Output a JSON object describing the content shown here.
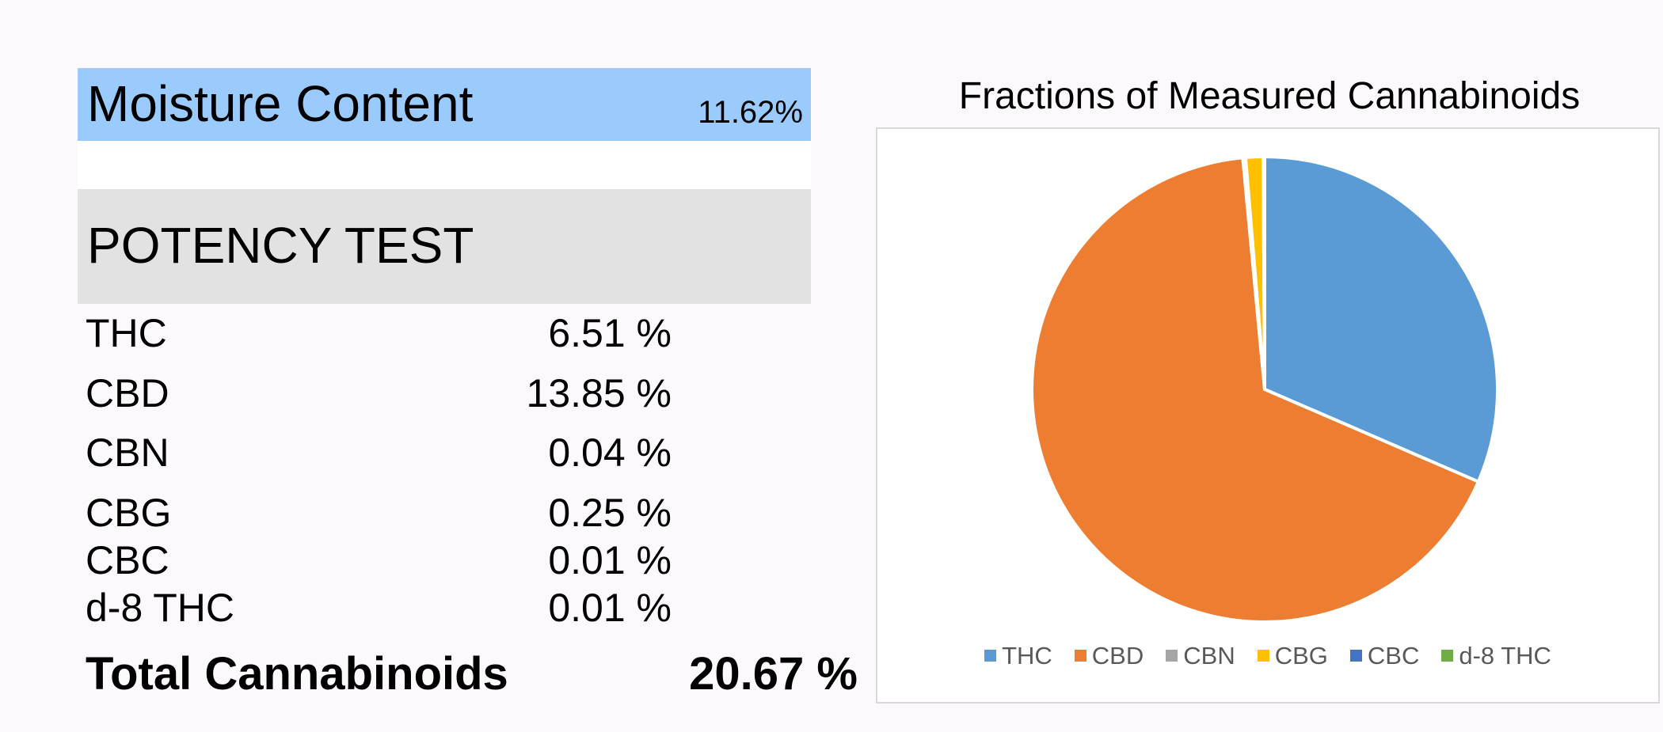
{
  "moisture": {
    "label": "Moisture Content",
    "value": "11.62%"
  },
  "potency": {
    "title": "POTENCY TEST",
    "rows": [
      {
        "name": "THC",
        "value": "6.51 %"
      },
      {
        "name": "CBD",
        "value": "13.85 %"
      },
      {
        "name": "CBN",
        "value": "0.04 %"
      },
      {
        "name": "CBG",
        "value": "0.25 %"
      },
      {
        "name": "CBC",
        "value": "0.01 %"
      },
      {
        "name": "d-8 THC",
        "value": "0.01 %"
      }
    ],
    "total_label": "Total Cannabinoids",
    "total_value": "20.67 %"
  },
  "colors": {
    "moisture_bg": "#9bcbfd",
    "potency_bg": "#e2e2e2"
  },
  "chart_data": {
    "type": "pie",
    "title": "Fractions of Measured Cannabinoids",
    "categories": [
      "THC",
      "CBD",
      "CBN",
      "CBG",
      "CBC",
      "d-8 THC"
    ],
    "values": [
      6.51,
      13.85,
      0.04,
      0.25,
      0.01,
      0.01
    ],
    "colors": [
      "#5b9bd5",
      "#ed7d31",
      "#a5a5a5",
      "#ffc000",
      "#4472c4",
      "#70ad47"
    ],
    "legend": "bottom"
  }
}
